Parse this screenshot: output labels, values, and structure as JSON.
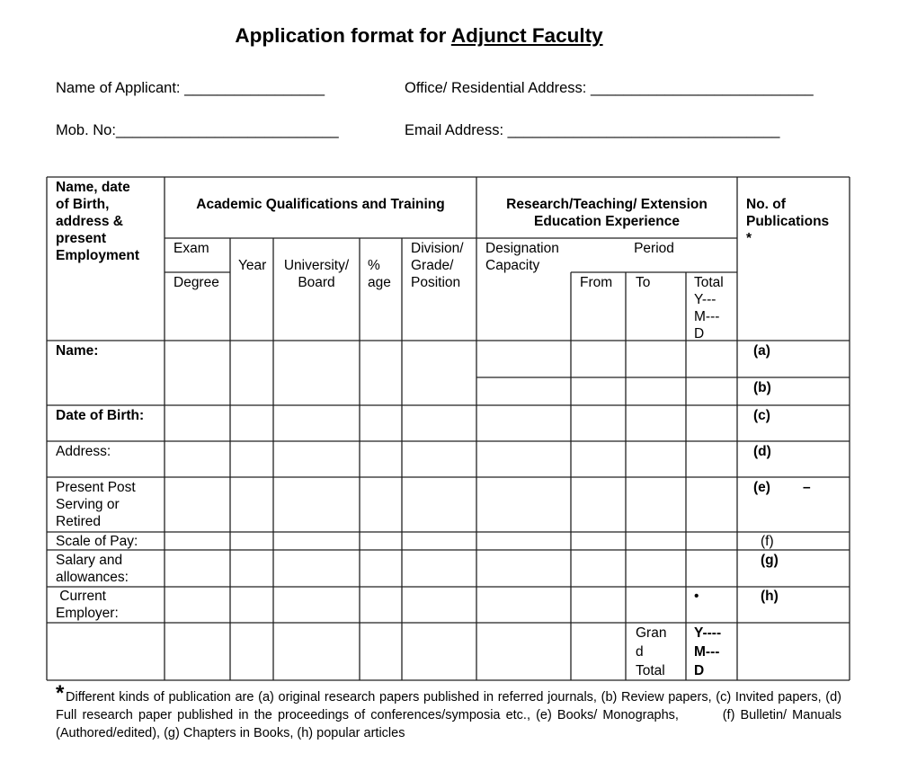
{
  "title": {
    "prefix": "Application format for ",
    "underlined": "Adjunct Faculty"
  },
  "fields": {
    "name_of_applicant": "Name of Applicant: _________________",
    "address": "Office/ Residential Address: ___________________________",
    "mobile": "Mob. No:___________________________",
    "email": "Email Address: _________________________________"
  },
  "table": {
    "col1_header": "Name, date\nof Birth,\naddress &\npresent\nEmployment",
    "academic_header": "Academic Qualifications and Training",
    "research_header": "Research/Teaching/ Extension\nEducation Experience",
    "publications_header": "No. of\nPublications\n*",
    "exam": "Exam",
    "degree": "Degree",
    "year": "Year",
    "university": "University/\nBoard",
    "percent": "%\nage",
    "division": "Division/\nGrade/\nPosition",
    "designation": "Designation\nCapacity",
    "period": "Period",
    "from": "From",
    "to": "To",
    "total": "Total\nY---\nM---\nD",
    "rows": {
      "name": "Name:",
      "dob": "Date of Birth:",
      "address": "Address:",
      "present_post": "Present Post\nServing or\nRetired",
      "scale_of_pay": "Scale of Pay:",
      "salary": "Salary and\nallowances:",
      "current_employer": " Current\nEmployer:"
    },
    "pubs": {
      "a": "(a)",
      "b": "(b)",
      "c": "(c)",
      "d": "(d)",
      "e": "(e)",
      "e_dash": "–",
      "f": "(f)",
      "g": "(g)",
      "h": "(h)"
    },
    "bullet": "•",
    "grand_total": "Gran\nd\nTotal",
    "grand_ymd": "Y----\nM---\nD"
  },
  "footnote": {
    "star": "*",
    "text": "Different kinds of publication are (a) original research papers published in referred journals, (b) Review papers, (c) Invited papers, (d) Full research paper published in the proceedings of conferences/symposia etc., (e) Books/ Monographs,        (f) Bulletin/ Manuals (Authored/edited), (g) Chapters in Books, (h) popular articles"
  }
}
